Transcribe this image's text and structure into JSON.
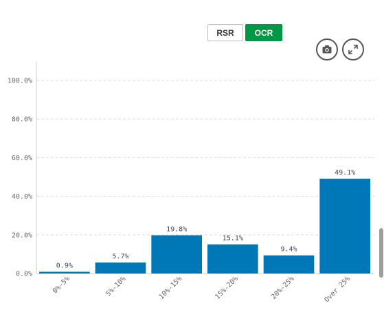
{
  "toolbar": {
    "rsr_label": "RSR",
    "ocr_label": "OCR",
    "active": "OCR",
    "camera_icon": "camera-icon",
    "expand_icon": "expand-icon",
    "accent_color": "#009845"
  },
  "chart_data": {
    "type": "bar",
    "title": "",
    "xlabel": "",
    "ylabel": "",
    "categories": [
      "0%-5%",
      "5%-10%",
      "10%-15%",
      "15%-20%",
      "20%-25%",
      "Over 25%"
    ],
    "values": [
      0.9,
      5.7,
      19.8,
      15.1,
      9.4,
      49.1
    ],
    "data_labels": [
      "0.9%",
      "5.7%",
      "19.8%",
      "15.1%",
      "9.4%",
      "49.1%"
    ],
    "y_ticks": [
      "0.0%",
      "20.0%",
      "40.0%",
      "60.0%",
      "80.0%",
      "100.0%"
    ],
    "y_tick_values": [
      0,
      20,
      40,
      60,
      80,
      100
    ],
    "ylim": [
      0,
      110
    ],
    "grid": true,
    "bar_color": "#0077b6"
  }
}
